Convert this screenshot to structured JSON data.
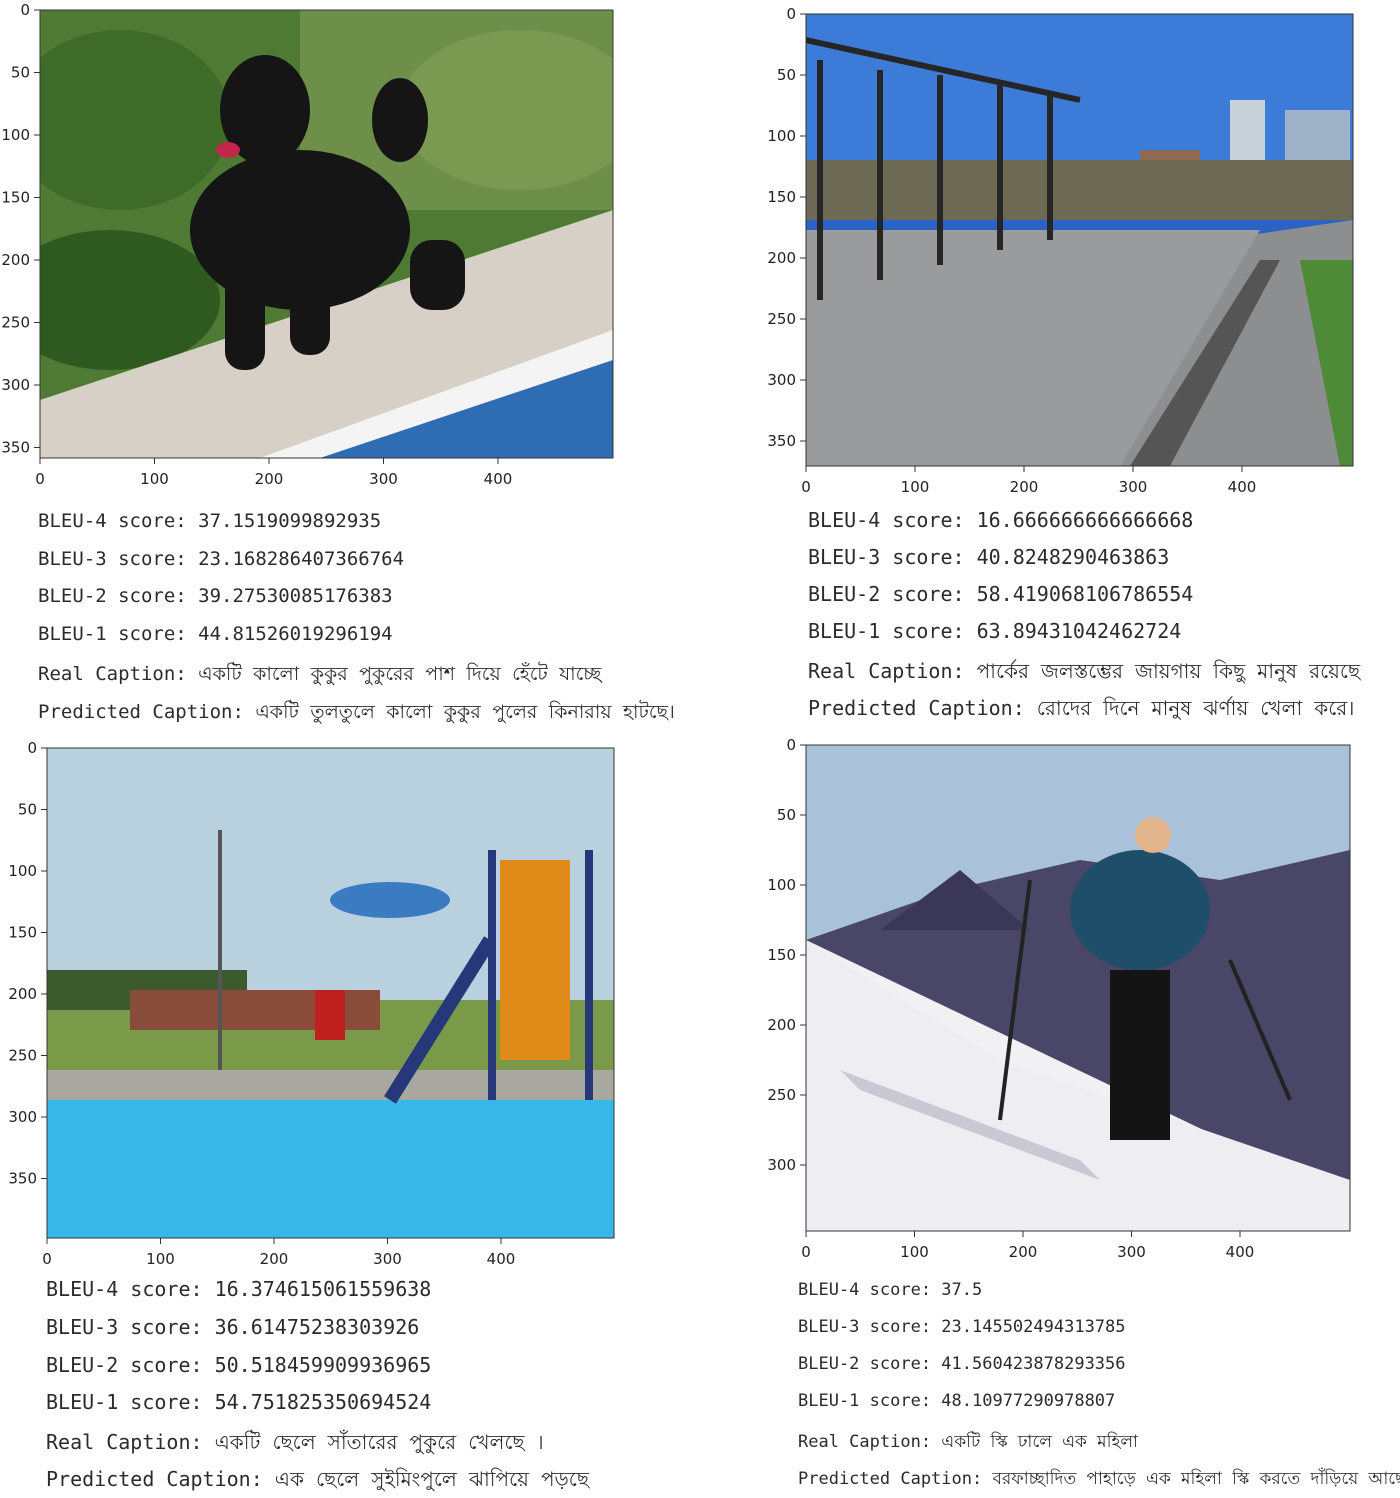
{
  "panels": [
    {
      "id": "dog",
      "photo": {
        "sky": "",
        "description_colors": [
          "#3c6b2a",
          "#d9d3cb",
          "#2a6fb5",
          "#1a1a1a"
        ]
      },
      "x_ticks": [
        "0",
        "100",
        "200",
        "300",
        "400"
      ],
      "y_ticks": [
        "0",
        "50",
        "100",
        "150",
        "200",
        "250",
        "300",
        "350"
      ],
      "bleu4": "BLEU-4 score: 37.1519099892935",
      "bleu3": "BLEU-3 score: 23.168286407366764",
      "bleu2": "BLEU-2 score: 39.27530085176383",
      "bleu1": "BLEU-1 score: 44.81526019296194",
      "real": "Real Caption: একটি কালো কুকুর পুকুরের পাশ দিয়ে হেঁটে যাচ্ছে",
      "predicted": "Predicted Caption: একটি তুলতুলে কালো কুকুর পুলের কিনারায় হাটছে।"
    },
    {
      "id": "fountain",
      "x_ticks": [
        "0",
        "100",
        "200",
        "300",
        "400"
      ],
      "y_ticks": [
        "0",
        "50",
        "100",
        "150",
        "200",
        "250",
        "300",
        "350"
      ],
      "bleu4": "BLEU-4 score: 16.666666666666668",
      "bleu3": "BLEU-3 score: 40.8248290463863",
      "bleu2": "BLEU-2 score: 58.419068106786554",
      "bleu1": "BLEU-1 score: 63.89431042462724",
      "real": "Real Caption: পার্কের জলস্তম্ভের জায়গায় কিছু মানুষ রয়েছে",
      "predicted": "Predicted Caption: রোদের দিনে মানুষ ঝর্ণায় খেলা করে।"
    },
    {
      "id": "pool",
      "x_ticks": [
        "0",
        "100",
        "200",
        "300",
        "400"
      ],
      "y_ticks": [
        "0",
        "50",
        "100",
        "150",
        "200",
        "250",
        "300",
        "350"
      ],
      "bleu4": "BLEU-4 score: 16.374615061559638",
      "bleu3": "BLEU-3 score: 36.61475238303926",
      "bleu2": "BLEU-2 score: 50.518459909936965",
      "bleu1": "BLEU-1 score: 54.751825350694524",
      "real": "Real Caption: একটি ছেলে সাঁতারের পুকুরে খেলছে ।",
      "predicted": "Predicted Caption: এক ছেলে সুইমিংপুলে ঝাপিয়ে পড়ছে"
    },
    {
      "id": "ski",
      "x_ticks": [
        "0",
        "100",
        "200",
        "300",
        "400"
      ],
      "y_ticks": [
        "0",
        "50",
        "100",
        "150",
        "200",
        "250",
        "300"
      ],
      "bleu4": "BLEU-4 score: 37.5",
      "bleu3": "BLEU-3 score: 23.145502494313785",
      "bleu2": "BLEU-2 score: 41.560423878293356",
      "bleu1": "BLEU-1 score: 48.10977290978807",
      "real": "Real Caption: একটি স্কি ঢালে এক মহিলা",
      "predicted": "Predicted Caption: বরফাচ্ছাদিত পাহাড়ে এক মহিলা স্কি করতে দাঁড়িয়ে আছেন"
    }
  ]
}
